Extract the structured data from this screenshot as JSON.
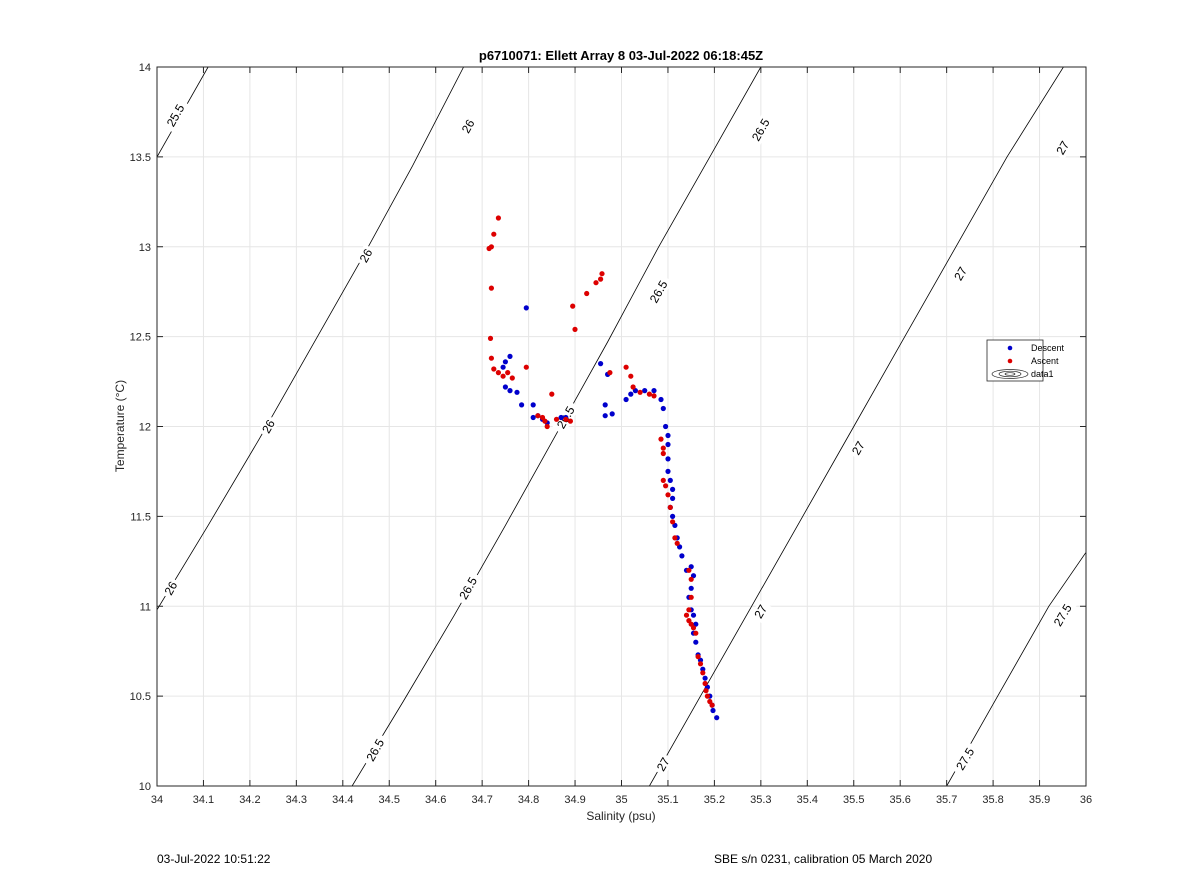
{
  "colors": {
    "descent": "#0000cc",
    "ascent": "#dd0000",
    "contour": "#000000",
    "grid": "#e6e6e6"
  },
  "footer": {
    "left": "03-Jul-2022 10:51:22",
    "right": "SBE s/n 0231, calibration 05 March 2020"
  },
  "chart_data": {
    "type": "scatter",
    "title": "p6710071: Ellett Array 8 03-Jul-2022 06:18:45Z",
    "xlabel": "Salinity (psu)",
    "ylabel": "Temperature (°C)",
    "xlim": [
      34,
      36
    ],
    "ylim": [
      10,
      14
    ],
    "xticks": [
      "34",
      "34.1",
      "34.2",
      "34.3",
      "34.4",
      "34.5",
      "34.6",
      "34.7",
      "34.8",
      "34.9",
      "35",
      "35.1",
      "35.2",
      "35.3",
      "35.4",
      "35.5",
      "35.6",
      "35.7",
      "35.8",
      "35.9",
      "36"
    ],
    "yticks": [
      "10",
      "10.5",
      "11",
      "11.5",
      "12",
      "12.5",
      "13",
      "13.5",
      "14"
    ],
    "grid": true,
    "legend_position": "right",
    "legend": [
      "Descent",
      "Ascent",
      "data1"
    ],
    "density_contours": [
      {
        "level": "25.5",
        "points": [
          [
            34,
            13.5
          ],
          [
            34.11,
            14
          ]
        ],
        "labels": [
          {
            "text": "25.5",
            "x": 34.04,
            "y": 13.73
          }
        ]
      },
      {
        "level": "26",
        "points": [
          [
            34,
            10.98
          ],
          [
            34.11,
            11.45
          ],
          [
            34.22,
            11.93
          ],
          [
            34.33,
            12.43
          ],
          [
            34.44,
            12.93
          ],
          [
            34.55,
            13.45
          ],
          [
            34.66,
            14
          ]
        ],
        "labels": [
          {
            "text": "26",
            "x": 34.03,
            "y": 11.1
          },
          {
            "text": "26",
            "x": 34.24,
            "y": 12.0
          },
          {
            "text": "26",
            "x": 34.45,
            "y": 12.95
          },
          {
            "text": "26",
            "x": 34.67,
            "y": 13.67
          }
        ]
      },
      {
        "level": "26.5",
        "points": [
          [
            34.42,
            10
          ],
          [
            34.53,
            10.47
          ],
          [
            34.64,
            10.95
          ],
          [
            34.75,
            11.45
          ],
          [
            34.86,
            11.96
          ],
          [
            34.97,
            12.47
          ],
          [
            35.08,
            13.0
          ],
          [
            35.19,
            13.5
          ],
          [
            35.3,
            14
          ]
        ],
        "labels": [
          {
            "text": "26.5",
            "x": 34.47,
            "y": 10.2
          },
          {
            "text": "26.5",
            "x": 34.67,
            "y": 11.1
          },
          {
            "text": "26.5",
            "x": 34.88,
            "y": 12.05
          },
          {
            "text": "26.5",
            "x": 35.08,
            "y": 12.75
          },
          {
            "text": "26.5",
            "x": 35.3,
            "y": 13.65
          }
        ]
      },
      {
        "level": "27",
        "points": [
          [
            35.06,
            10
          ],
          [
            35.17,
            10.5
          ],
          [
            35.28,
            11.0
          ],
          [
            35.39,
            11.5
          ],
          [
            35.5,
            12.0
          ],
          [
            35.61,
            12.5
          ],
          [
            35.72,
            13.0
          ],
          [
            35.83,
            13.5
          ],
          [
            36,
            14.2
          ]
        ],
        "labels": [
          {
            "text": "27",
            "x": 35.09,
            "y": 10.12
          },
          {
            "text": "27",
            "x": 35.3,
            "y": 10.97
          },
          {
            "text": "27",
            "x": 35.51,
            "y": 11.88
          },
          {
            "text": "27",
            "x": 35.73,
            "y": 12.85
          },
          {
            "text": "27",
            "x": 35.95,
            "y": 13.55
          }
        ]
      },
      {
        "level": "27.5",
        "points": [
          [
            35.7,
            10
          ],
          [
            35.81,
            10.5
          ],
          [
            35.92,
            11.0
          ],
          [
            36,
            11.3
          ]
        ],
        "labels": [
          {
            "text": "27.5",
            "x": 35.74,
            "y": 10.15
          },
          {
            "text": "27.5",
            "x": 35.95,
            "y": 10.95
          }
        ]
      }
    ],
    "series": [
      {
        "name": "Descent",
        "color": "#0000cc",
        "points": [
          [
            34.75,
            12.36
          ],
          [
            34.76,
            12.39
          ],
          [
            34.745,
            12.33
          ],
          [
            34.75,
            12.22
          ],
          [
            34.76,
            12.2
          ],
          [
            34.775,
            12.19
          ],
          [
            34.785,
            12.12
          ],
          [
            34.795,
            12.66
          ],
          [
            34.81,
            12.12
          ],
          [
            34.81,
            12.05
          ],
          [
            34.82,
            12.06
          ],
          [
            34.83,
            12.04
          ],
          [
            34.84,
            12.02
          ],
          [
            34.87,
            12.05
          ],
          [
            34.88,
            12.05
          ],
          [
            34.955,
            12.35
          ],
          [
            34.965,
            12.12
          ],
          [
            34.97,
            12.29
          ],
          [
            34.965,
            12.06
          ],
          [
            34.98,
            12.07
          ],
          [
            35.01,
            12.15
          ],
          [
            35.02,
            12.18
          ],
          [
            35.03,
            12.2
          ],
          [
            35.05,
            12.2
          ],
          [
            35.07,
            12.2
          ],
          [
            35.085,
            12.15
          ],
          [
            35.09,
            12.1
          ],
          [
            35.095,
            12.0
          ],
          [
            35.1,
            11.95
          ],
          [
            35.1,
            11.9
          ],
          [
            35.1,
            11.82
          ],
          [
            35.1,
            11.75
          ],
          [
            35.105,
            11.7
          ],
          [
            35.11,
            11.65
          ],
          [
            35.11,
            11.6
          ],
          [
            35.105,
            11.55
          ],
          [
            35.11,
            11.5
          ],
          [
            35.115,
            11.45
          ],
          [
            35.12,
            11.38
          ],
          [
            35.125,
            11.33
          ],
          [
            35.13,
            11.28
          ],
          [
            35.14,
            11.2
          ],
          [
            35.15,
            11.22
          ],
          [
            35.155,
            11.17
          ],
          [
            35.15,
            11.1
          ],
          [
            35.145,
            11.05
          ],
          [
            35.15,
            10.98
          ],
          [
            35.155,
            10.95
          ],
          [
            35.16,
            10.9
          ],
          [
            35.155,
            10.85
          ],
          [
            35.16,
            10.8
          ],
          [
            35.165,
            10.73
          ],
          [
            35.17,
            10.7
          ],
          [
            35.175,
            10.65
          ],
          [
            35.18,
            10.6
          ],
          [
            35.185,
            10.55
          ],
          [
            35.19,
            10.5
          ],
          [
            35.195,
            10.45
          ],
          [
            35.197,
            10.42
          ],
          [
            35.205,
            10.38
          ]
        ]
      },
      {
        "name": "Ascent",
        "color": "#dd0000",
        "points": [
          [
            34.715,
            12.99
          ],
          [
            34.72,
            13.0
          ],
          [
            34.725,
            13.07
          ],
          [
            34.735,
            13.16
          ],
          [
            34.72,
            12.77
          ],
          [
            34.718,
            12.49
          ],
          [
            34.72,
            12.38
          ],
          [
            34.725,
            12.32
          ],
          [
            34.735,
            12.3
          ],
          [
            34.745,
            12.28
          ],
          [
            34.755,
            12.3
          ],
          [
            34.765,
            12.27
          ],
          [
            34.795,
            12.33
          ],
          [
            34.82,
            12.06
          ],
          [
            34.83,
            12.05
          ],
          [
            34.835,
            12.03
          ],
          [
            34.84,
            12.0
          ],
          [
            34.85,
            12.18
          ],
          [
            34.86,
            12.04
          ],
          [
            34.88,
            12.04
          ],
          [
            34.89,
            12.03
          ],
          [
            34.895,
            12.67
          ],
          [
            34.9,
            12.54
          ],
          [
            34.925,
            12.74
          ],
          [
            34.945,
            12.8
          ],
          [
            34.955,
            12.82
          ],
          [
            34.958,
            12.85
          ],
          [
            34.975,
            12.3
          ],
          [
            35.01,
            12.33
          ],
          [
            35.02,
            12.28
          ],
          [
            35.025,
            12.22
          ],
          [
            35.04,
            12.19
          ],
          [
            35.06,
            12.18
          ],
          [
            35.07,
            12.17
          ],
          [
            35.085,
            11.93
          ],
          [
            35.09,
            11.88
          ],
          [
            35.09,
            11.85
          ],
          [
            35.09,
            11.7
          ],
          [
            35.095,
            11.67
          ],
          [
            35.1,
            11.62
          ],
          [
            35.105,
            11.55
          ],
          [
            35.11,
            11.47
          ],
          [
            35.115,
            11.38
          ],
          [
            35.12,
            11.35
          ],
          [
            35.145,
            11.2
          ],
          [
            35.15,
            11.15
          ],
          [
            35.15,
            11.05
          ],
          [
            35.145,
            10.98
          ],
          [
            35.14,
            10.95
          ],
          [
            35.145,
            10.92
          ],
          [
            35.15,
            10.9
          ],
          [
            35.155,
            10.88
          ],
          [
            35.16,
            10.85
          ],
          [
            35.165,
            10.72
          ],
          [
            35.17,
            10.68
          ],
          [
            35.175,
            10.63
          ],
          [
            35.18,
            10.57
          ],
          [
            35.182,
            10.53
          ],
          [
            35.185,
            10.5
          ],
          [
            35.19,
            10.47
          ],
          [
            35.195,
            10.45
          ]
        ]
      }
    ]
  }
}
